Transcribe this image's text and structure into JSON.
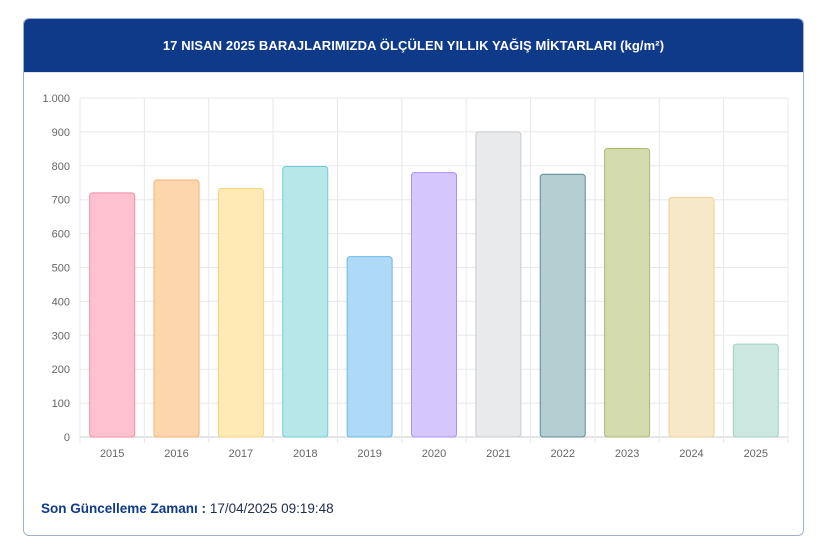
{
  "header": {
    "title": "17 NISAN 2025 BARAJLARIMIZDA ÖLÇÜLEN YILLIK YAĞIŞ MİKTARLARI (kg/m²)"
  },
  "footer": {
    "label": "Son Güncelleme Zamanı :",
    "value": "17/04/2025 09:19:48"
  },
  "colors": {
    "header_bg": "#0f3a8a",
    "fills": [
      "#ffc0cf",
      "#fdd6ad",
      "#ffe9b5",
      "#b7e7e8",
      "#aed9f7",
      "#d5c6fd",
      "#e9eaeb",
      "#b5ced2",
      "#d4dbae",
      "#f6e8c8",
      "#cbe7df"
    ],
    "strokes": [
      "#f08fa7",
      "#f5b170",
      "#f6d27a",
      "#6dcfd1",
      "#6bb7ea",
      "#ab91f5",
      "#c9cbcd",
      "#5f8a92",
      "#a9b871",
      "#ead29a",
      "#9fd1c3"
    ]
  },
  "chart_data": {
    "type": "bar",
    "title": "17 NISAN 2025 BARAJLARIMIZDA ÖLÇÜLEN YILLIK YAĞIŞ MİKTARLARI (kg/m²)",
    "categories": [
      "2015",
      "2016",
      "2017",
      "2018",
      "2019",
      "2020",
      "2021",
      "2022",
      "2023",
      "2024",
      "2025"
    ],
    "values": [
      720,
      758,
      733,
      798,
      532,
      780,
      900,
      775,
      851,
      707,
      274
    ],
    "ylim": [
      0,
      1000
    ],
    "yticks": [
      0,
      100,
      200,
      300,
      400,
      500,
      600,
      700,
      800,
      900,
      1000
    ],
    "ytick_labels": [
      "0",
      "100",
      "200",
      "300",
      "400",
      "500",
      "600",
      "700",
      "800",
      "900",
      "1.000"
    ],
    "grid": true,
    "legend": "none"
  }
}
